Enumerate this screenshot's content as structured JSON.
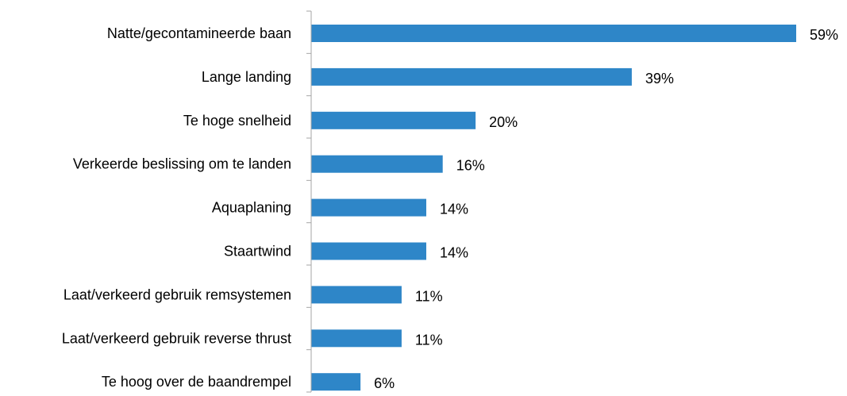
{
  "chart_data": {
    "type": "bar",
    "orientation": "horizontal",
    "title": "",
    "xlabel": "",
    "ylabel": "",
    "categories": [
      "Natte/gecontamineerde baan",
      "Lange landing",
      "Te hoge snelheid",
      "Verkeerde beslissing om te landen",
      "Aquaplaning",
      "Staartwind",
      "Laat/verkeerd gebruik remsystemen",
      "Laat/verkeerd gebruik reverse thrust",
      "Te hoog over de baandrempel"
    ],
    "values": [
      59,
      39,
      20,
      16,
      14,
      14,
      11,
      11,
      6
    ],
    "value_labels": [
      "59%",
      "39%",
      "20%",
      "16%",
      "14%",
      "14%",
      "11%",
      "11%",
      "6%"
    ],
    "value_unit": "%",
    "xlim": [
      0,
      59
    ],
    "grid": false,
    "legend": "none",
    "bar_color": "#2E86C8",
    "axis_color": "#A6A6A6"
  }
}
